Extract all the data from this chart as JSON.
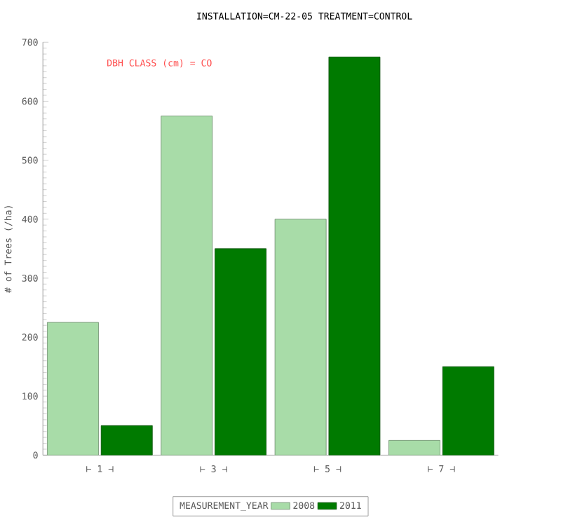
{
  "chart_data": {
    "type": "bar",
    "title": "INSTALLATION=CM-22-05 TREATMENT=CONTROL",
    "ylabel": "# of Trees (/ha)",
    "legend_title": "MEASUREMENT_YEAR",
    "annotations": [
      "DBH CLASS (cm) = CO"
    ],
    "categories": [
      "⊢ 1 ⊣",
      "⊢ 3 ⊣",
      "⊢ 5 ⊣",
      "⊢ 7 ⊣"
    ],
    "series": [
      {
        "name": "2008",
        "color": "#a8dca8",
        "values": [
          225,
          575,
          400,
          25
        ]
      },
      {
        "name": "2011",
        "color": "#007a00",
        "values": [
          50,
          350,
          675,
          150
        ]
      }
    ],
    "ylim": [
      0,
      700
    ],
    "yticks": [
      0,
      100,
      200,
      300,
      400,
      500,
      600,
      700
    ],
    "grid": false,
    "legend": "bottom"
  }
}
